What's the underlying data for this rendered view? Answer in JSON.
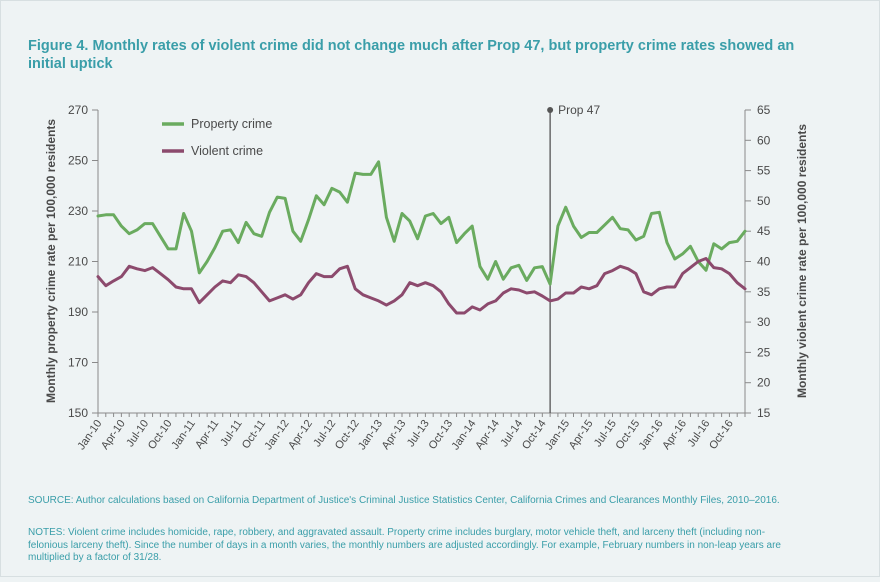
{
  "figure": {
    "title": "Figure 4. Monthly rates of violent crime did not change much after Prop 47, but property crime rates showed an initial uptick",
    "source": "SOURCE: Author calculations based on California Department of Justice's Criminal Justice Statistics Center, California Crimes and Clearances Monthly Files, 2010–2016.",
    "notes": "NOTES: Violent crime includes homicide, rape, robbery, and aggravated assault. Property crime includes burglary, motor vehicle theft, and larceny theft (including non-felonious larceny theft). Since the number of days in a month varies, the monthly numbers are adjusted accordingly. For example, February numbers in non-leap years are multiplied by a factor of 31/28."
  },
  "colors": {
    "property": "#6aab5f",
    "violent": "#8c4a6d",
    "annotation": "#555555",
    "title": "#3a9ea9"
  },
  "chart_data": {
    "type": "line",
    "x": [
      "Jan-10",
      "Feb-10",
      "Mar-10",
      "Apr-10",
      "May-10",
      "Jun-10",
      "Jul-10",
      "Aug-10",
      "Sep-10",
      "Oct-10",
      "Nov-10",
      "Dec-10",
      "Jan-11",
      "Feb-11",
      "Mar-11",
      "Apr-11",
      "May-11",
      "Jun-11",
      "Jul-11",
      "Aug-11",
      "Sep-11",
      "Oct-11",
      "Nov-11",
      "Dec-11",
      "Jan-12",
      "Feb-12",
      "Mar-12",
      "Apr-12",
      "May-12",
      "Jun-12",
      "Jul-12",
      "Aug-12",
      "Sep-12",
      "Oct-12",
      "Nov-12",
      "Dec-12",
      "Jan-13",
      "Feb-13",
      "Mar-13",
      "Apr-13",
      "May-13",
      "Jun-13",
      "Jul-13",
      "Aug-13",
      "Sep-13",
      "Oct-13",
      "Nov-13",
      "Dec-13",
      "Jan-14",
      "Feb-14",
      "Mar-14",
      "Apr-14",
      "May-14",
      "Jun-14",
      "Jul-14",
      "Aug-14",
      "Sep-14",
      "Oct-14",
      "Nov-14",
      "Dec-14",
      "Jan-15",
      "Feb-15",
      "Mar-15",
      "Apr-15",
      "May-15",
      "Jun-15",
      "Jul-15",
      "Aug-15",
      "Sep-15",
      "Oct-15",
      "Nov-15",
      "Dec-15",
      "Jan-16",
      "Feb-16",
      "Mar-16",
      "Apr-16",
      "May-16",
      "Jun-16",
      "Jul-16",
      "Aug-16",
      "Sep-16",
      "Oct-16",
      "Nov-16",
      "Dec-16"
    ],
    "xtick_labels": [
      "Jan-10",
      "Apr-10",
      "Jul-10",
      "Oct-10",
      "Jan-11",
      "Apr-11",
      "Jul-11",
      "Oct-11",
      "Jan-12",
      "Apr-12",
      "Jul-12",
      "Oct-12",
      "Jan-13",
      "Apr-13",
      "Jul-13",
      "Oct-13",
      "Jan-14",
      "Apr-14",
      "Jul-14",
      "Oct-14",
      "Jan-15",
      "Apr-15",
      "Jul-15",
      "Oct-15",
      "Jan-16",
      "Apr-16",
      "Jul-16",
      "Oct-16"
    ],
    "series": [
      {
        "name": "Property crime",
        "axis": "left",
        "values": [
          228,
          228.5,
          228.5,
          224,
          221,
          222.5,
          225,
          225,
          220,
          215,
          215,
          229,
          222,
          205.5,
          210,
          215.5,
          222,
          222.5,
          217.5,
          225.5,
          221,
          220,
          229.5,
          235.5,
          235,
          222,
          218,
          226.5,
          236,
          232.5,
          239,
          237.5,
          233.5,
          245,
          244.5,
          244.5,
          249.5,
          227.5,
          218,
          229,
          226,
          219,
          228,
          229,
          225,
          227.5,
          217.5,
          221,
          224,
          208,
          203,
          210,
          203,
          207.5,
          208.5,
          202.5,
          207.5,
          208,
          201,
          224,
          231.5,
          224,
          219.5,
          221.5,
          221.5,
          224.5,
          227.5,
          223,
          222.5,
          218.5,
          220,
          229,
          229.5,
          217.5,
          211,
          213,
          216,
          210,
          206.5,
          217,
          215,
          217.5,
          218,
          222
        ]
      },
      {
        "name": "Violent crime",
        "axis": "right",
        "values": [
          37.5,
          36,
          36.8,
          37.5,
          39.2,
          38.8,
          38.5,
          39,
          38,
          37,
          35.8,
          35.5,
          35.5,
          33.2,
          34.5,
          35.8,
          36.8,
          36.5,
          37.8,
          37.5,
          36.5,
          35,
          33.5,
          34,
          34.5,
          33.8,
          34.5,
          36.5,
          38,
          37.5,
          37.5,
          38.8,
          39.2,
          35.5,
          34.5,
          34,
          33.5,
          32.8,
          33.5,
          34.5,
          36.5,
          36,
          36.5,
          36,
          35,
          33,
          31.5,
          31.5,
          32.5,
          32,
          33,
          33.5,
          34.8,
          35.5,
          35.3,
          34.8,
          35,
          34.3,
          33.5,
          33.8,
          34.8,
          34.8,
          35.8,
          35.5,
          36,
          38,
          38.5,
          39.2,
          38.8,
          38,
          35,
          34.5,
          35.5,
          35.8,
          35.8,
          38,
          39,
          40,
          40.5,
          39,
          38.8,
          38,
          36.5,
          35.5
        ]
      }
    ],
    "annotations": [
      {
        "label": "Prop 47",
        "x": "Nov-14"
      }
    ],
    "ylabel_left": "Monthly property crime rate per 100,000 residents",
    "ylabel_right": "Monthly violent crime rate per 100,000 residents",
    "ylim_left": [
      150,
      270
    ],
    "yticks_left": [
      150,
      170,
      190,
      210,
      230,
      250,
      270
    ],
    "ylim_right": [
      15,
      65
    ],
    "yticks_right": [
      15,
      20,
      25,
      30,
      35,
      40,
      45,
      50,
      55,
      60,
      65
    ],
    "legend": {
      "position": "top-left",
      "entries": [
        "Property crime",
        "Violent crime"
      ]
    },
    "grid": false
  }
}
